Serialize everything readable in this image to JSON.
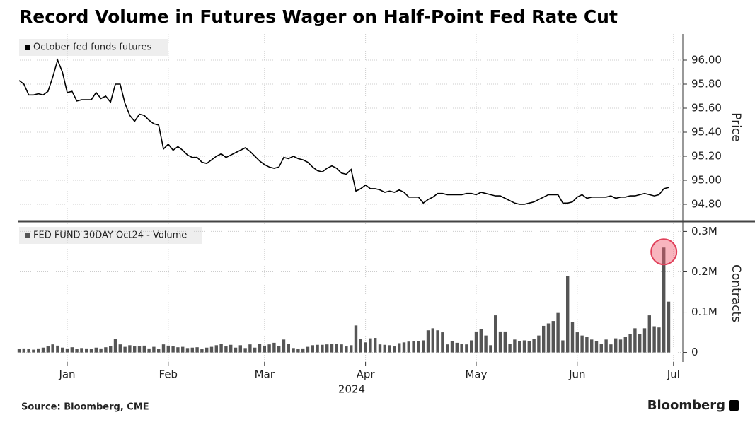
{
  "chart_data": [
    {
      "type": "line",
      "title": "Record Volume in Futures Wager on Half-Point Fed Rate Cut",
      "ylabel": "Price",
      "grid": true,
      "ylim": [
        94.7,
        96.2
      ],
      "yticks": [
        {
          "value": 94.8,
          "label": "94.80"
        },
        {
          "value": 95,
          "label": "95.00"
        },
        {
          "value": 95.2,
          "label": "95.20"
        },
        {
          "value": 95.4,
          "label": "95.40"
        },
        {
          "value": 95.6,
          "label": "95.60"
        },
        {
          "value": 95.8,
          "label": "95.80"
        },
        {
          "value": 96,
          "label": "96.00"
        }
      ],
      "series": [
        {
          "name": "October fed funds futures",
          "color": "#000000",
          "values": [
            95.83,
            95.8,
            95.71,
            95.71,
            95.72,
            95.71,
            95.74,
            95.86,
            96.0,
            95.9,
            95.73,
            95.74,
            95.66,
            95.67,
            95.67,
            95.67,
            95.73,
            95.68,
            95.7,
            95.65,
            95.8,
            95.8,
            95.64,
            95.54,
            95.49,
            95.55,
            95.54,
            95.5,
            95.47,
            95.46,
            95.26,
            95.3,
            95.25,
            95.28,
            95.25,
            95.21,
            95.19,
            95.19,
            95.15,
            95.14,
            95.17,
            95.2,
            95.22,
            95.19,
            95.21,
            95.23,
            95.25,
            95.27,
            95.24,
            95.2,
            95.16,
            95.13,
            95.11,
            95.1,
            95.11,
            95.19,
            95.18,
            95.2,
            95.18,
            95.17,
            95.15,
            95.11,
            95.08,
            95.07,
            95.1,
            95.12,
            95.1,
            95.06,
            95.05,
            95.09,
            94.91,
            94.93,
            94.96,
            94.93,
            94.93,
            94.92,
            94.9,
            94.91,
            94.9,
            94.92,
            94.9,
            94.86,
            94.86,
            94.86,
            94.81,
            94.84,
            94.86,
            94.89,
            94.89,
            94.88,
            94.88,
            94.88,
            94.88,
            94.89,
            94.89,
            94.88,
            94.9,
            94.89,
            94.88,
            94.87,
            94.87,
            94.85,
            94.83,
            94.81,
            94.8,
            94.8,
            94.81,
            94.82,
            94.84,
            94.86,
            94.88,
            94.88,
            94.88,
            94.81,
            94.81,
            94.82,
            94.86,
            94.88,
            94.85,
            94.86,
            94.86,
            94.86,
            94.86,
            94.87,
            94.85,
            94.86,
            94.86,
            94.87,
            94.87,
            94.88,
            94.89,
            94.88,
            94.87,
            94.88,
            94.93,
            94.94,
            null
          ]
        }
      ]
    },
    {
      "type": "bar",
      "ylabel": "Contracts",
      "xlabel": "2024",
      "grid": true,
      "ylim": [
        -0.02,
        0.32
      ],
      "yticks": [
        0,
        {
          "value": 0.1,
          "label": "0.1M"
        },
        {
          "value": 0.2,
          "label": "0.2M"
        },
        {
          "value": 0.3,
          "label": "0.3M"
        }
      ],
      "categories": [
        null,
        null,
        null,
        null,
        null,
        null,
        null,
        null,
        null,
        null,
        "Jan",
        null,
        null,
        null,
        null,
        null,
        null,
        null,
        null,
        null,
        null,
        null,
        null,
        null,
        null,
        null,
        null,
        null,
        null,
        null,
        null,
        "Feb",
        null,
        null,
        null,
        null,
        null,
        null,
        null,
        null,
        null,
        null,
        null,
        null,
        null,
        null,
        null,
        null,
        null,
        null,
        null,
        "Mar",
        null,
        null,
        null,
        null,
        null,
        null,
        null,
        null,
        null,
        null,
        null,
        null,
        null,
        null,
        null,
        null,
        null,
        null,
        null,
        null,
        "Apr",
        null,
        null,
        null,
        null,
        null,
        null,
        null,
        null,
        null,
        null,
        null,
        null,
        null,
        null,
        null,
        null,
        null,
        null,
        null,
        null,
        null,
        null,
        "May",
        null,
        null,
        null,
        null,
        null,
        null,
        null,
        null,
        null,
        null,
        null,
        null,
        null,
        null,
        null,
        null,
        null,
        null,
        null,
        null,
        "Jun",
        null,
        null,
        null,
        null,
        null,
        null,
        null,
        null,
        null,
        null,
        null,
        null,
        null,
        null,
        null,
        null,
        null,
        null,
        null,
        "Jul"
      ],
      "series": [
        {
          "name": "FED FUND 30DAY Oct24 - Volume",
          "color": "#555555",
          "values": [
            0.008,
            0.01,
            0.009,
            0.007,
            0.01,
            0.012,
            0.015,
            0.02,
            0.017,
            0.012,
            0.01,
            0.013,
            0.009,
            0.011,
            0.01,
            0.009,
            0.012,
            0.01,
            0.013,
            0.016,
            0.033,
            0.02,
            0.014,
            0.018,
            0.015,
            0.015,
            0.017,
            0.01,
            0.014,
            0.009,
            0.02,
            0.017,
            0.015,
            0.013,
            0.014,
            0.011,
            0.012,
            0.013,
            0.008,
            0.012,
            0.014,
            0.018,
            0.022,
            0.015,
            0.019,
            0.012,
            0.018,
            0.011,
            0.02,
            0.012,
            0.021,
            0.017,
            0.02,
            0.024,
            0.016,
            0.032,
            0.022,
            0.011,
            0.008,
            0.01,
            0.014,
            0.018,
            0.019,
            0.019,
            0.02,
            0.021,
            0.022,
            0.02,
            0.015,
            0.018,
            0.067,
            0.033,
            0.025,
            0.035,
            0.036,
            0.02,
            0.019,
            0.018,
            0.015,
            0.023,
            0.025,
            0.027,
            0.028,
            0.029,
            0.03,
            0.055,
            0.06,
            0.055,
            0.05,
            0.02,
            0.028,
            0.024,
            0.022,
            0.02,
            0.03,
            0.052,
            0.058,
            0.042,
            0.018,
            0.092,
            0.052,
            0.052,
            0.022,
            0.032,
            0.028,
            0.03,
            0.029,
            0.033,
            0.042,
            0.066,
            0.072,
            0.078,
            0.098,
            0.03,
            0.19,
            0.075,
            0.05,
            0.042,
            0.038,
            0.032,
            0.028,
            0.022,
            0.032,
            0.02,
            0.035,
            0.032,
            0.038,
            0.045,
            0.06,
            0.045,
            0.06,
            0.092,
            0.065,
            0.062,
            0.26,
            0.126,
            null
          ]
        }
      ]
    }
  ],
  "source": "Source: Bloomberg, CME",
  "brand": "Bloomberg"
}
